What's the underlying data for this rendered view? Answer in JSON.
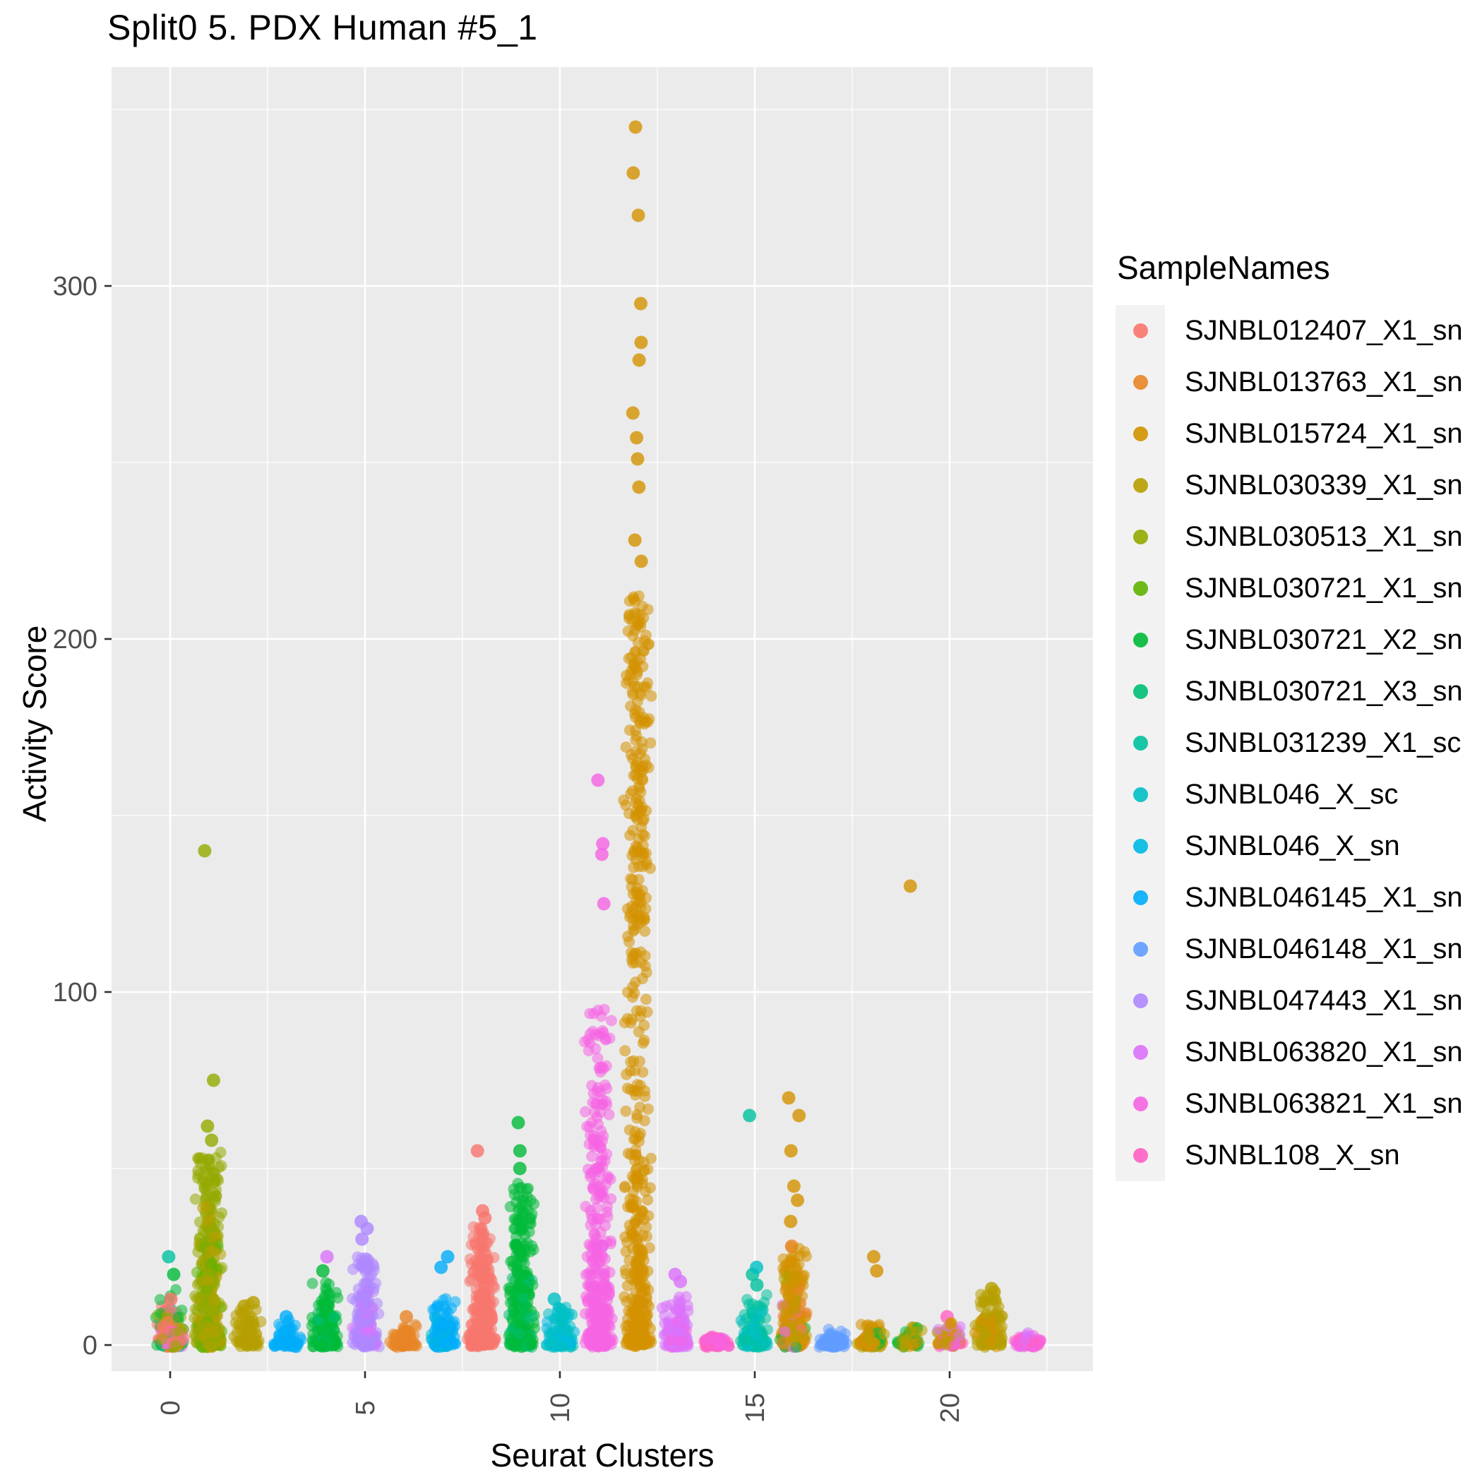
{
  "chart_data": {
    "type": "scatter",
    "title": "Split0 5. PDX Human #5_1",
    "xlabel": "Seurat Clusters",
    "ylabel": "Activity Score",
    "legend_title": "SampleNames",
    "legend_position": "right",
    "panel_background": "#EBEBEB",
    "grid": true,
    "x_ticks": [
      0,
      5,
      10,
      15,
      20
    ],
    "y_ticks": [
      0,
      100,
      200,
      300
    ],
    "y_minor_ticks": [
      50,
      150,
      250,
      350
    ],
    "x_minor_ticks": [
      2.5,
      7.5,
      12.5,
      17.5,
      22.5
    ],
    "ylim": [
      -7,
      362
    ],
    "xlim": [
      -1.5,
      23.5
    ],
    "n_clusters": 23,
    "samples": [
      {
        "name": "SJNBL012407_X1_sn",
        "color": "#F8766D"
      },
      {
        "name": "SJNBL013763_X1_sn",
        "color": "#E88526"
      },
      {
        "name": "SJNBL015724_X1_sn",
        "color": "#D39200"
      },
      {
        "name": "SJNBL030339_X1_sn",
        "color": "#B79F00"
      },
      {
        "name": "SJNBL030513_X1_sn",
        "color": "#93AA00"
      },
      {
        "name": "SJNBL030721_X1_sn",
        "color": "#5EB300"
      },
      {
        "name": "SJNBL030721_X2_sn",
        "color": "#00BA38"
      },
      {
        "name": "SJNBL030721_X3_sn",
        "color": "#00BF74"
      },
      {
        "name": "SJNBL031239_X1_sc",
        "color": "#00C19F"
      },
      {
        "name": "SJNBL046_X_sc",
        "color": "#00BFC4"
      },
      {
        "name": "SJNBL046_X_sn",
        "color": "#00B9E3"
      },
      {
        "name": "SJNBL046145_X1_sn",
        "color": "#00ADFA"
      },
      {
        "name": "SJNBL046148_X1_sn",
        "color": "#619CFF"
      },
      {
        "name": "SJNBL047443_X1_sn",
        "color": "#AE87FF"
      },
      {
        "name": "SJNBL063820_X1_sn",
        "color": "#DB72FB"
      },
      {
        "name": "SJNBL063821_X1_sn",
        "color": "#F564E3"
      },
      {
        "name": "SJNBL108_X_sn",
        "color": "#FF61C3"
      }
    ],
    "clusters": [
      {
        "x": 0,
        "groups": [
          {
            "s": 0,
            "n": 90,
            "max": 11,
            "p": 3
          },
          {
            "s": 3,
            "n": 35,
            "max": 9,
            "p": 3
          },
          {
            "s": 4,
            "n": 25,
            "max": 8,
            "p": 3
          },
          {
            "s": 6,
            "n": 30,
            "max": 16,
            "p": 3
          },
          {
            "s": 8,
            "n": 20,
            "max": 12,
            "p": 3
          },
          {
            "s": 16,
            "n": 25,
            "max": 6,
            "p": 3
          },
          {
            "s": 14,
            "n": 8,
            "max": 4,
            "p": 2
          }
        ],
        "outliers": [
          {
            "s": 8,
            "y": 25
          },
          {
            "s": 6,
            "y": 20
          },
          {
            "s": 0,
            "y": 13
          }
        ]
      },
      {
        "x": 1,
        "groups": [
          {
            "s": 4,
            "n": 260,
            "max": 55,
            "p": 2.2
          },
          {
            "s": 3,
            "n": 120,
            "max": 40,
            "p": 2.5
          },
          {
            "s": 5,
            "n": 60,
            "max": 30,
            "p": 2.5
          }
        ],
        "outliers": [
          {
            "s": 4,
            "y": 140
          },
          {
            "s": 4,
            "y": 75
          },
          {
            "s": 4,
            "y": 62
          },
          {
            "s": 4,
            "y": 58
          }
        ]
      },
      {
        "x": 2,
        "groups": [
          {
            "s": 3,
            "n": 90,
            "max": 11,
            "p": 2.5
          }
        ],
        "outliers": [
          {
            "s": 3,
            "y": 12
          },
          {
            "s": 3,
            "y": 11
          }
        ]
      },
      {
        "x": 3,
        "groups": [
          {
            "s": 11,
            "n": 70,
            "max": 7,
            "p": 3
          }
        ],
        "outliers": [
          {
            "s": 11,
            "y": 8
          }
        ]
      },
      {
        "x": 4,
        "groups": [
          {
            "s": 6,
            "n": 150,
            "max": 18,
            "p": 2.5
          },
          {
            "s": 7,
            "n": 30,
            "max": 10,
            "p": 3
          }
        ],
        "outliers": [
          {
            "s": 14,
            "y": 25
          },
          {
            "s": 6,
            "y": 21
          }
        ]
      },
      {
        "x": 5,
        "groups": [
          {
            "s": 13,
            "n": 160,
            "max": 25,
            "p": 2.3
          },
          {
            "s": 14,
            "n": 30,
            "max": 15,
            "p": 2.5
          }
        ],
        "outliers": [
          {
            "s": 13,
            "y": 35
          },
          {
            "s": 13,
            "y": 33
          },
          {
            "s": 13,
            "y": 30
          }
        ]
      },
      {
        "x": 6,
        "groups": [
          {
            "s": 1,
            "n": 90,
            "max": 7,
            "p": 3
          }
        ],
        "outliers": [
          {
            "s": 1,
            "y": 8
          }
        ]
      },
      {
        "x": 7,
        "groups": [
          {
            "s": 11,
            "n": 110,
            "max": 13,
            "p": 2.5
          },
          {
            "s": 9,
            "n": 30,
            "max": 8,
            "p": 3
          }
        ],
        "outliers": [
          {
            "s": 11,
            "y": 25
          },
          {
            "s": 11,
            "y": 22
          }
        ]
      },
      {
        "x": 8,
        "groups": [
          {
            "s": 0,
            "n": 260,
            "max": 34,
            "p": 2.2
          }
        ],
        "outliers": [
          {
            "s": 0,
            "y": 55
          },
          {
            "s": 0,
            "y": 38
          },
          {
            "s": 0,
            "y": 36
          }
        ]
      },
      {
        "x": 9,
        "groups": [
          {
            "s": 6,
            "n": 260,
            "max": 46,
            "p": 2.2
          },
          {
            "s": 7,
            "n": 40,
            "max": 20,
            "p": 2.5
          }
        ],
        "outliers": [
          {
            "s": 6,
            "y": 63
          },
          {
            "s": 6,
            "y": 55
          },
          {
            "s": 6,
            "y": 50
          }
        ]
      },
      {
        "x": 10,
        "groups": [
          {
            "s": 9,
            "n": 90,
            "max": 11,
            "p": 2.7
          },
          {
            "s": 10,
            "n": 30,
            "max": 8,
            "p": 3
          }
        ],
        "outliers": [
          {
            "s": 9,
            "y": 13
          }
        ]
      },
      {
        "x": 11,
        "groups": [
          {
            "s": 15,
            "n": 300,
            "max": 60,
            "p": 2.2
          },
          {
            "s": 15,
            "n": 60,
            "min": 55,
            "max": 95,
            "p": 1
          }
        ],
        "outliers": [
          {
            "s": 15,
            "y": 160
          },
          {
            "s": 15,
            "y": 142
          },
          {
            "s": 15,
            "y": 139
          },
          {
            "s": 15,
            "y": 125
          },
          {
            "s": 14,
            "y": 28
          }
        ]
      },
      {
        "x": 12,
        "groups": [
          {
            "s": 2,
            "n": 320,
            "max": 130,
            "p": 2.2
          },
          {
            "s": 2,
            "n": 170,
            "min": 120,
            "max": 212,
            "p": 1
          }
        ],
        "outliers": [
          {
            "s": 2,
            "y": 345
          },
          {
            "s": 2,
            "y": 332
          },
          {
            "s": 2,
            "y": 320
          },
          {
            "s": 2,
            "y": 295
          },
          {
            "s": 2,
            "y": 284
          },
          {
            "s": 2,
            "y": 279
          },
          {
            "s": 2,
            "y": 264
          },
          {
            "s": 2,
            "y": 257
          },
          {
            "s": 2,
            "y": 251
          },
          {
            "s": 2,
            "y": 243
          },
          {
            "s": 2,
            "y": 228
          },
          {
            "s": 2,
            "y": 222
          }
        ]
      },
      {
        "x": 13,
        "groups": [
          {
            "s": 14,
            "n": 110,
            "max": 14,
            "p": 2.5
          },
          {
            "s": 15,
            "n": 25,
            "max": 8,
            "p": 3
          }
        ],
        "outliers": [
          {
            "s": 14,
            "y": 20
          },
          {
            "s": 14,
            "y": 18
          }
        ]
      },
      {
        "x": 14,
        "groups": [
          {
            "s": 16,
            "n": 70,
            "max": 2,
            "p": 2
          },
          {
            "s": 15,
            "n": 30,
            "max": 2,
            "p": 2
          }
        ],
        "outliers": []
      },
      {
        "x": 15,
        "groups": [
          {
            "s": 8,
            "n": 80,
            "max": 14,
            "p": 2.5
          },
          {
            "s": 9,
            "n": 50,
            "max": 10,
            "p": 2.5
          }
        ],
        "outliers": [
          {
            "s": 8,
            "y": 65
          },
          {
            "s": 9,
            "y": 22
          },
          {
            "s": 8,
            "y": 20
          },
          {
            "s": 8,
            "y": 17
          }
        ]
      },
      {
        "x": 16,
        "groups": [
          {
            "s": 2,
            "n": 150,
            "max": 28,
            "p": 2
          },
          {
            "s": 3,
            "n": 60,
            "max": 20,
            "p": 2.5
          },
          {
            "s": 1,
            "n": 25,
            "max": 18,
            "p": 2.5
          },
          {
            "s": 14,
            "n": 20,
            "max": 12,
            "p": 2.5
          },
          {
            "s": 6,
            "n": 20,
            "max": 15,
            "p": 2.5
          },
          {
            "s": 0,
            "n": 15,
            "max": 10,
            "p": 2.5
          }
        ],
        "outliers": [
          {
            "s": 2,
            "y": 70
          },
          {
            "s": 2,
            "y": 65
          },
          {
            "s": 2,
            "y": 55
          },
          {
            "s": 2,
            "y": 45
          },
          {
            "s": 2,
            "y": 41
          },
          {
            "s": 2,
            "y": 35
          },
          {
            "s": 1,
            "y": 28
          }
        ]
      },
      {
        "x": 17,
        "groups": [
          {
            "s": 12,
            "n": 90,
            "max": 4,
            "p": 2.5
          }
        ],
        "outliers": []
      },
      {
        "x": 18,
        "groups": [
          {
            "s": 2,
            "n": 50,
            "max": 7,
            "p": 2.5
          },
          {
            "s": 3,
            "n": 25,
            "max": 5,
            "p": 2.5
          },
          {
            "s": 6,
            "n": 10,
            "max": 4,
            "p": 2.5
          }
        ],
        "outliers": [
          {
            "s": 2,
            "y": 25
          },
          {
            "s": 2,
            "y": 21
          }
        ]
      },
      {
        "x": 19,
        "groups": [
          {
            "s": 3,
            "n": 30,
            "max": 6,
            "p": 2.5
          },
          {
            "s": 6,
            "n": 15,
            "max": 5,
            "p": 2.5
          },
          {
            "s": 2,
            "n": 10,
            "max": 4,
            "p": 2.5
          }
        ],
        "outliers": [
          {
            "s": 2,
            "y": 130
          }
        ]
      },
      {
        "x": 20,
        "groups": [
          {
            "s": 2,
            "n": 25,
            "max": 6,
            "p": 2.5
          },
          {
            "s": 16,
            "n": 20,
            "max": 5,
            "p": 2.5
          },
          {
            "s": 3,
            "n": 15,
            "max": 5,
            "p": 2.5
          },
          {
            "s": 14,
            "n": 10,
            "max": 6,
            "p": 2.5
          }
        ],
        "outliers": [
          {
            "s": 16,
            "y": 8
          }
        ]
      },
      {
        "x": 21,
        "groups": [
          {
            "s": 3,
            "n": 110,
            "max": 14,
            "p": 2
          },
          {
            "s": 2,
            "n": 20,
            "max": 8,
            "p": 2.5
          }
        ],
        "outliers": [
          {
            "s": 3,
            "y": 16
          },
          {
            "s": 3,
            "y": 15
          }
        ]
      },
      {
        "x": 22,
        "groups": [
          {
            "s": 15,
            "n": 40,
            "max": 2,
            "p": 2
          },
          {
            "s": 16,
            "n": 30,
            "max": 2,
            "p": 2
          },
          {
            "s": 14,
            "n": 10,
            "max": 3,
            "p": 2
          }
        ],
        "outliers": []
      }
    ]
  }
}
